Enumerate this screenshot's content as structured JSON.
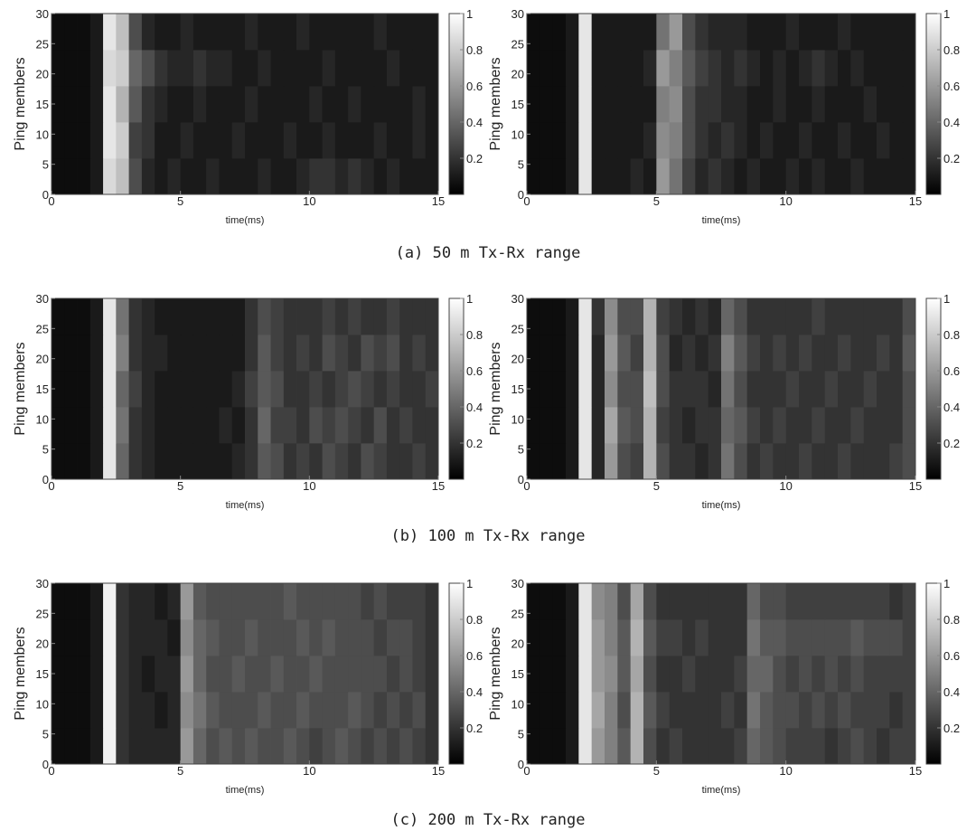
{
  "captions": [
    "(a) 50 m Tx-Rx range",
    "(b) 100 m Tx-Rx range",
    "(c) 200 m Tx-Rx range"
  ],
  "chart_data": [
    {
      "type": "heatmap",
      "x_label": "time(ms)",
      "y_label": "Ping members",
      "xlim": [
        0,
        15
      ],
      "xticks": [
        0,
        5,
        10,
        15
      ],
      "ylim": [
        0,
        30
      ],
      "yticks": [
        0,
        5,
        10,
        15,
        20,
        25,
        30
      ],
      "clim": [
        0,
        1
      ],
      "cticks": [
        0.2,
        0.4,
        0.6,
        0.8,
        1
      ],
      "z": [
        [
          0.05,
          0.05,
          0.05,
          0.1,
          0.85,
          0.75,
          0.3,
          0.15,
          0.1,
          0.15,
          0.1,
          0.1,
          0.15,
          0.1,
          0.1,
          0.1,
          0.15,
          0.1,
          0.1,
          0.15,
          0.2,
          0.2,
          0.15,
          0.2,
          0.15,
          0.1,
          0.15,
          0.1,
          0.1,
          0.1
        ],
        [
          0.05,
          0.05,
          0.05,
          0.1,
          0.9,
          0.8,
          0.25,
          0.2,
          0.1,
          0.1,
          0.15,
          0.1,
          0.1,
          0.1,
          0.15,
          0.1,
          0.1,
          0.1,
          0.15,
          0.1,
          0.1,
          0.15,
          0.1,
          0.1,
          0.1,
          0.15,
          0.1,
          0.1,
          0.15,
          0.1
        ],
        [
          0.05,
          0.05,
          0.05,
          0.1,
          0.9,
          0.7,
          0.35,
          0.2,
          0.15,
          0.1,
          0.1,
          0.15,
          0.1,
          0.1,
          0.1,
          0.15,
          0.1,
          0.1,
          0.1,
          0.1,
          0.15,
          0.1,
          0.1,
          0.15,
          0.1,
          0.1,
          0.1,
          0.1,
          0.15,
          0.1
        ],
        [
          0.05,
          0.05,
          0.05,
          0.1,
          0.85,
          0.8,
          0.4,
          0.3,
          0.2,
          0.15,
          0.15,
          0.2,
          0.15,
          0.15,
          0.1,
          0.1,
          0.15,
          0.1,
          0.1,
          0.1,
          0.1,
          0.15,
          0.1,
          0.1,
          0.1,
          0.1,
          0.15,
          0.1,
          0.1,
          0.1
        ],
        [
          0.05,
          0.05,
          0.05,
          0.1,
          0.9,
          0.75,
          0.3,
          0.15,
          0.1,
          0.1,
          0.15,
          0.1,
          0.1,
          0.1,
          0.1,
          0.15,
          0.1,
          0.1,
          0.1,
          0.15,
          0.1,
          0.1,
          0.1,
          0.1,
          0.1,
          0.15,
          0.1,
          0.1,
          0.1,
          0.1
        ]
      ]
    },
    {
      "type": "heatmap",
      "x_label": "time(ms)",
      "y_label": "Ping members",
      "xlim": [
        0,
        15
      ],
      "xticks": [
        0,
        5,
        10,
        15
      ],
      "ylim": [
        0,
        30
      ],
      "yticks": [
        0,
        5,
        10,
        15,
        20,
        25,
        30
      ],
      "clim": [
        0,
        1
      ],
      "cticks": [
        0.2,
        0.4,
        0.6,
        0.8,
        1
      ],
      "z": [
        [
          0.05,
          0.05,
          0.05,
          0.1,
          0.9,
          0.1,
          0.1,
          0.1,
          0.15,
          0.1,
          0.6,
          0.45,
          0.25,
          0.15,
          0.2,
          0.15,
          0.1,
          0.15,
          0.1,
          0.1,
          0.15,
          0.1,
          0.15,
          0.1,
          0.1,
          0.15,
          0.1,
          0.1,
          0.1,
          0.1
        ],
        [
          0.05,
          0.05,
          0.05,
          0.1,
          0.9,
          0.1,
          0.1,
          0.1,
          0.1,
          0.15,
          0.55,
          0.5,
          0.3,
          0.2,
          0.15,
          0.2,
          0.15,
          0.1,
          0.15,
          0.1,
          0.1,
          0.15,
          0.1,
          0.1,
          0.15,
          0.1,
          0.1,
          0.15,
          0.1,
          0.1
        ],
        [
          0.05,
          0.05,
          0.05,
          0.1,
          0.9,
          0.1,
          0.1,
          0.1,
          0.1,
          0.1,
          0.5,
          0.55,
          0.3,
          0.2,
          0.2,
          0.15,
          0.15,
          0.1,
          0.1,
          0.15,
          0.1,
          0.1,
          0.15,
          0.1,
          0.1,
          0.1,
          0.15,
          0.1,
          0.1,
          0.1
        ],
        [
          0.05,
          0.05,
          0.05,
          0.1,
          0.9,
          0.1,
          0.1,
          0.1,
          0.1,
          0.15,
          0.6,
          0.5,
          0.35,
          0.25,
          0.2,
          0.15,
          0.2,
          0.15,
          0.1,
          0.15,
          0.1,
          0.15,
          0.2,
          0.15,
          0.1,
          0.15,
          0.1,
          0.1,
          0.1,
          0.1
        ],
        [
          0.05,
          0.05,
          0.05,
          0.1,
          0.9,
          0.1,
          0.1,
          0.1,
          0.1,
          0.1,
          0.45,
          0.6,
          0.3,
          0.2,
          0.15,
          0.15,
          0.15,
          0.1,
          0.1,
          0.1,
          0.15,
          0.1,
          0.1,
          0.1,
          0.15,
          0.1,
          0.1,
          0.1,
          0.1,
          0.1
        ]
      ]
    },
    {
      "type": "heatmap",
      "x_label": "time(ms)",
      "y_label": "Ping members",
      "xlim": [
        0,
        15
      ],
      "xticks": [
        0,
        5,
        10,
        15
      ],
      "ylim": [
        0,
        30
      ],
      "yticks": [
        0,
        5,
        10,
        15,
        20,
        25,
        30
      ],
      "clim": [
        0,
        1
      ],
      "cticks": [
        0.2,
        0.4,
        0.6,
        0.8,
        1
      ],
      "z": [
        [
          0.05,
          0.05,
          0.05,
          0.1,
          0.9,
          0.4,
          0.2,
          0.15,
          0.1,
          0.1,
          0.1,
          0.1,
          0.1,
          0.1,
          0.15,
          0.2,
          0.35,
          0.3,
          0.2,
          0.25,
          0.2,
          0.3,
          0.25,
          0.2,
          0.3,
          0.25,
          0.2,
          0.2,
          0.25,
          0.2
        ],
        [
          0.05,
          0.05,
          0.05,
          0.1,
          0.9,
          0.45,
          0.2,
          0.15,
          0.1,
          0.1,
          0.1,
          0.1,
          0.1,
          0.15,
          0.1,
          0.2,
          0.4,
          0.25,
          0.25,
          0.2,
          0.3,
          0.25,
          0.3,
          0.25,
          0.2,
          0.3,
          0.2,
          0.25,
          0.2,
          0.2
        ],
        [
          0.05,
          0.05,
          0.05,
          0.1,
          0.9,
          0.4,
          0.25,
          0.15,
          0.1,
          0.1,
          0.1,
          0.1,
          0.1,
          0.1,
          0.15,
          0.25,
          0.35,
          0.3,
          0.2,
          0.2,
          0.25,
          0.2,
          0.25,
          0.3,
          0.25,
          0.2,
          0.25,
          0.2,
          0.2,
          0.25
        ],
        [
          0.05,
          0.05,
          0.05,
          0.1,
          0.9,
          0.5,
          0.2,
          0.15,
          0.15,
          0.1,
          0.1,
          0.1,
          0.1,
          0.1,
          0.1,
          0.2,
          0.35,
          0.25,
          0.2,
          0.25,
          0.2,
          0.3,
          0.25,
          0.2,
          0.3,
          0.25,
          0.3,
          0.2,
          0.25,
          0.2
        ],
        [
          0.05,
          0.05,
          0.05,
          0.1,
          0.9,
          0.45,
          0.2,
          0.15,
          0.1,
          0.1,
          0.1,
          0.1,
          0.1,
          0.1,
          0.1,
          0.2,
          0.3,
          0.25,
          0.2,
          0.2,
          0.2,
          0.25,
          0.2,
          0.25,
          0.2,
          0.2,
          0.25,
          0.2,
          0.2,
          0.2
        ]
      ]
    },
    {
      "type": "heatmap",
      "x_label": "time(ms)",
      "y_label": "Ping members",
      "xlim": [
        0,
        15
      ],
      "xticks": [
        0,
        5,
        10,
        15
      ],
      "ylim": [
        0,
        30
      ],
      "yticks": [
        0,
        5,
        10,
        15,
        20,
        25,
        30
      ],
      "clim": [
        0,
        1
      ],
      "cticks": [
        0.2,
        0.4,
        0.6,
        0.8,
        1
      ],
      "z": [
        [
          0.05,
          0.05,
          0.05,
          0.1,
          0.9,
          0.15,
          0.6,
          0.3,
          0.25,
          0.7,
          0.3,
          0.2,
          0.2,
          0.15,
          0.2,
          0.45,
          0.3,
          0.2,
          0.25,
          0.2,
          0.2,
          0.25,
          0.2,
          0.2,
          0.25,
          0.2,
          0.2,
          0.2,
          0.25,
          0.3
        ],
        [
          0.05,
          0.05,
          0.05,
          0.1,
          0.9,
          0.15,
          0.65,
          0.35,
          0.3,
          0.7,
          0.25,
          0.2,
          0.15,
          0.2,
          0.2,
          0.4,
          0.35,
          0.25,
          0.2,
          0.25,
          0.2,
          0.2,
          0.25,
          0.2,
          0.2,
          0.25,
          0.2,
          0.2,
          0.2,
          0.3
        ],
        [
          0.05,
          0.05,
          0.05,
          0.1,
          0.9,
          0.15,
          0.55,
          0.3,
          0.3,
          0.75,
          0.3,
          0.2,
          0.2,
          0.2,
          0.15,
          0.45,
          0.3,
          0.2,
          0.2,
          0.2,
          0.25,
          0.2,
          0.2,
          0.25,
          0.2,
          0.2,
          0.25,
          0.2,
          0.2,
          0.3
        ],
        [
          0.05,
          0.05,
          0.05,
          0.1,
          0.9,
          0.15,
          0.6,
          0.35,
          0.25,
          0.7,
          0.3,
          0.15,
          0.2,
          0.15,
          0.2,
          0.5,
          0.35,
          0.25,
          0.2,
          0.25,
          0.2,
          0.25,
          0.2,
          0.2,
          0.25,
          0.2,
          0.2,
          0.25,
          0.2,
          0.35
        ],
        [
          0.05,
          0.05,
          0.05,
          0.1,
          0.9,
          0.2,
          0.55,
          0.3,
          0.3,
          0.7,
          0.25,
          0.2,
          0.15,
          0.2,
          0.15,
          0.4,
          0.3,
          0.2,
          0.2,
          0.2,
          0.2,
          0.2,
          0.25,
          0.2,
          0.2,
          0.2,
          0.2,
          0.2,
          0.2,
          0.3
        ]
      ]
    },
    {
      "type": "heatmap",
      "x_label": "time(ms)",
      "y_label": "Ping members",
      "xlim": [
        0,
        15
      ],
      "xticks": [
        0,
        5,
        10,
        15
      ],
      "ylim": [
        0,
        30
      ],
      "yticks": [
        0,
        5,
        10,
        15,
        20,
        25,
        30
      ],
      "clim": [
        0,
        1
      ],
      "cticks": [
        0.2,
        0.4,
        0.6,
        0.8,
        1
      ],
      "z": [
        [
          0.05,
          0.05,
          0.05,
          0.1,
          0.95,
          0.2,
          0.15,
          0.15,
          0.15,
          0.15,
          0.6,
          0.4,
          0.3,
          0.35,
          0.3,
          0.35,
          0.3,
          0.3,
          0.35,
          0.3,
          0.25,
          0.3,
          0.35,
          0.3,
          0.25,
          0.3,
          0.25,
          0.3,
          0.25,
          0.2
        ],
        [
          0.05,
          0.05,
          0.05,
          0.1,
          0.95,
          0.2,
          0.15,
          0.15,
          0.1,
          0.15,
          0.55,
          0.45,
          0.35,
          0.3,
          0.3,
          0.3,
          0.35,
          0.3,
          0.3,
          0.35,
          0.3,
          0.3,
          0.3,
          0.35,
          0.3,
          0.25,
          0.3,
          0.25,
          0.3,
          0.2
        ],
        [
          0.05,
          0.05,
          0.05,
          0.1,
          0.95,
          0.2,
          0.15,
          0.1,
          0.15,
          0.15,
          0.6,
          0.4,
          0.3,
          0.3,
          0.35,
          0.3,
          0.3,
          0.35,
          0.3,
          0.3,
          0.35,
          0.3,
          0.3,
          0.3,
          0.3,
          0.3,
          0.25,
          0.3,
          0.25,
          0.2
        ],
        [
          0.05,
          0.05,
          0.05,
          0.1,
          0.95,
          0.2,
          0.15,
          0.15,
          0.15,
          0.1,
          0.55,
          0.4,
          0.35,
          0.3,
          0.3,
          0.35,
          0.3,
          0.3,
          0.3,
          0.35,
          0.3,
          0.35,
          0.3,
          0.3,
          0.3,
          0.25,
          0.3,
          0.3,
          0.25,
          0.2
        ],
        [
          0.05,
          0.05,
          0.05,
          0.1,
          0.95,
          0.2,
          0.15,
          0.15,
          0.1,
          0.15,
          0.6,
          0.35,
          0.3,
          0.3,
          0.3,
          0.3,
          0.3,
          0.3,
          0.35,
          0.3,
          0.3,
          0.3,
          0.3,
          0.3,
          0.25,
          0.3,
          0.25,
          0.25,
          0.25,
          0.2
        ]
      ]
    },
    {
      "type": "heatmap",
      "x_label": "time(ms)",
      "y_label": "Ping members",
      "xlim": [
        0,
        15
      ],
      "xticks": [
        0,
        5,
        10,
        15
      ],
      "ylim": [
        0,
        30
      ],
      "yticks": [
        0,
        5,
        10,
        15,
        20,
        25,
        30
      ],
      "clim": [
        0,
        1
      ],
      "cticks": [
        0.2,
        0.4,
        0.6,
        0.8,
        1
      ],
      "z": [
        [
          0.05,
          0.05,
          0.05,
          0.1,
          0.9,
          0.6,
          0.5,
          0.35,
          0.7,
          0.3,
          0.2,
          0.25,
          0.2,
          0.2,
          0.2,
          0.2,
          0.25,
          0.4,
          0.35,
          0.3,
          0.25,
          0.25,
          0.25,
          0.2,
          0.25,
          0.3,
          0.25,
          0.2,
          0.25,
          0.25
        ],
        [
          0.05,
          0.05,
          0.05,
          0.1,
          0.9,
          0.65,
          0.5,
          0.3,
          0.7,
          0.35,
          0.25,
          0.2,
          0.2,
          0.2,
          0.2,
          0.25,
          0.2,
          0.45,
          0.35,
          0.3,
          0.3,
          0.25,
          0.3,
          0.25,
          0.3,
          0.25,
          0.25,
          0.25,
          0.2,
          0.25
        ],
        [
          0.05,
          0.05,
          0.05,
          0.1,
          0.9,
          0.6,
          0.55,
          0.35,
          0.65,
          0.3,
          0.2,
          0.2,
          0.25,
          0.2,
          0.2,
          0.2,
          0.25,
          0.4,
          0.4,
          0.3,
          0.25,
          0.3,
          0.25,
          0.3,
          0.25,
          0.3,
          0.25,
          0.25,
          0.25,
          0.25
        ],
        [
          0.05,
          0.05,
          0.05,
          0.1,
          0.9,
          0.6,
          0.5,
          0.35,
          0.7,
          0.35,
          0.25,
          0.25,
          0.2,
          0.25,
          0.2,
          0.2,
          0.2,
          0.45,
          0.35,
          0.35,
          0.3,
          0.3,
          0.3,
          0.3,
          0.3,
          0.35,
          0.3,
          0.3,
          0.3,
          0.25
        ],
        [
          0.05,
          0.05,
          0.05,
          0.1,
          0.9,
          0.55,
          0.5,
          0.3,
          0.65,
          0.3,
          0.2,
          0.2,
          0.2,
          0.2,
          0.2,
          0.2,
          0.2,
          0.4,
          0.3,
          0.3,
          0.25,
          0.25,
          0.25,
          0.25,
          0.25,
          0.25,
          0.25,
          0.25,
          0.2,
          0.25
        ]
      ]
    }
  ]
}
